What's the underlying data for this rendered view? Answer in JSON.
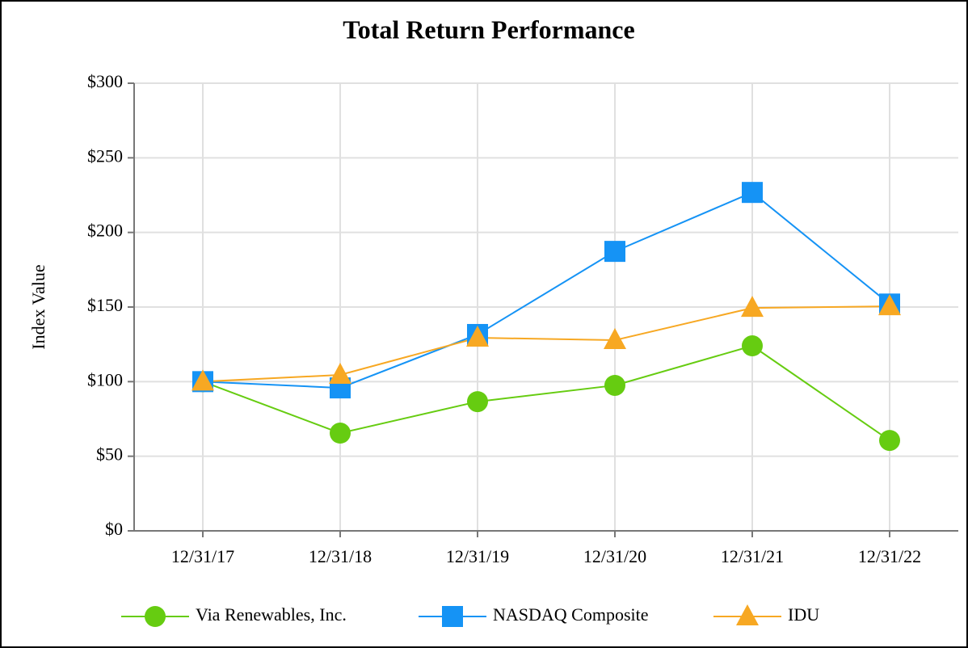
{
  "chart_data": {
    "type": "line",
    "title": "Total Return Performance",
    "y_label": "Index Value",
    "categories": [
      "12/31/17",
      "12/31/18",
      "12/31/19",
      "12/31/20",
      "12/31/21",
      "12/31/22"
    ],
    "series": [
      {
        "name": "Via Renewables, Inc.",
        "color": "#66cc11",
        "marker": "circle",
        "values": [
          100,
          65.5,
          86.6,
          97.5,
          124,
          60.6
        ]
      },
      {
        "name": "NASDAQ Composite",
        "color": "#1593f5",
        "marker": "square",
        "values": [
          100,
          95.8,
          131.6,
          187.3,
          226.8,
          152
        ]
      },
      {
        "name": "IDU",
        "color": "#f7a823",
        "marker": "triangle",
        "values": [
          100,
          104.5,
          129.4,
          127.8,
          149.4,
          150.5
        ]
      }
    ],
    "ylim": [
      0,
      300
    ],
    "yticks": [
      {
        "value": 0,
        "label": "$0"
      },
      {
        "value": 50,
        "label": "$50"
      },
      {
        "value": 100,
        "label": "$100"
      },
      {
        "value": 150,
        "label": "$150"
      },
      {
        "value": 200,
        "label": "$200"
      },
      {
        "value": 250,
        "label": "$250"
      },
      {
        "value": 300,
        "label": "$300"
      }
    ],
    "grid": true,
    "legend": "bottom"
  }
}
